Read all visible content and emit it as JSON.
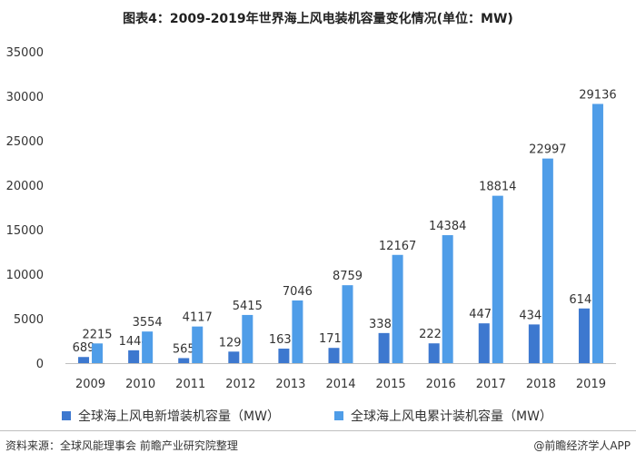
{
  "header": {
    "title": "图表4：2009-2019年世界海上风电装机容量变化情况(单位：MW)"
  },
  "footer": {
    "source": "资料来源：全球风能理事会 前瞻产业研究院整理",
    "brand": "@前瞻经济学人APP"
  },
  "colors": {
    "new_series": "#3d78cf",
    "cumulative_series": "#4f9de8",
    "axis": "#bfbfbf",
    "text": "#333333"
  },
  "chart_data": {
    "type": "bar",
    "title": "图表4：2009-2019年世界海上风电装机容量变化情况(单位：MW)",
    "categories": [
      "2009",
      "2010",
      "2011",
      "2012",
      "2013",
      "2014",
      "2015",
      "2016",
      "2017",
      "2018",
      "2019"
    ],
    "series": [
      {
        "name": "全球海上风电新增装机容量（MW）",
        "values": [
          689,
          1444,
          565,
          1296,
          1631,
          1713,
          3382,
          2223,
          4472,
          4348,
          6145
        ]
      },
      {
        "name": "全球海上风电累计装机容量（MW）",
        "values": [
          2215,
          3554,
          4117,
          5415,
          7046,
          8759,
          12167,
          14384,
          18814,
          22997,
          29136
        ]
      }
    ],
    "ylim": [
      0,
      35000
    ],
    "yticks": [
      "0",
      "5000",
      "10000",
      "15000",
      "20000",
      "25000",
      "30000",
      "35000"
    ],
    "grid": false,
    "legend_position": "bottom",
    "data_labels": true
  }
}
